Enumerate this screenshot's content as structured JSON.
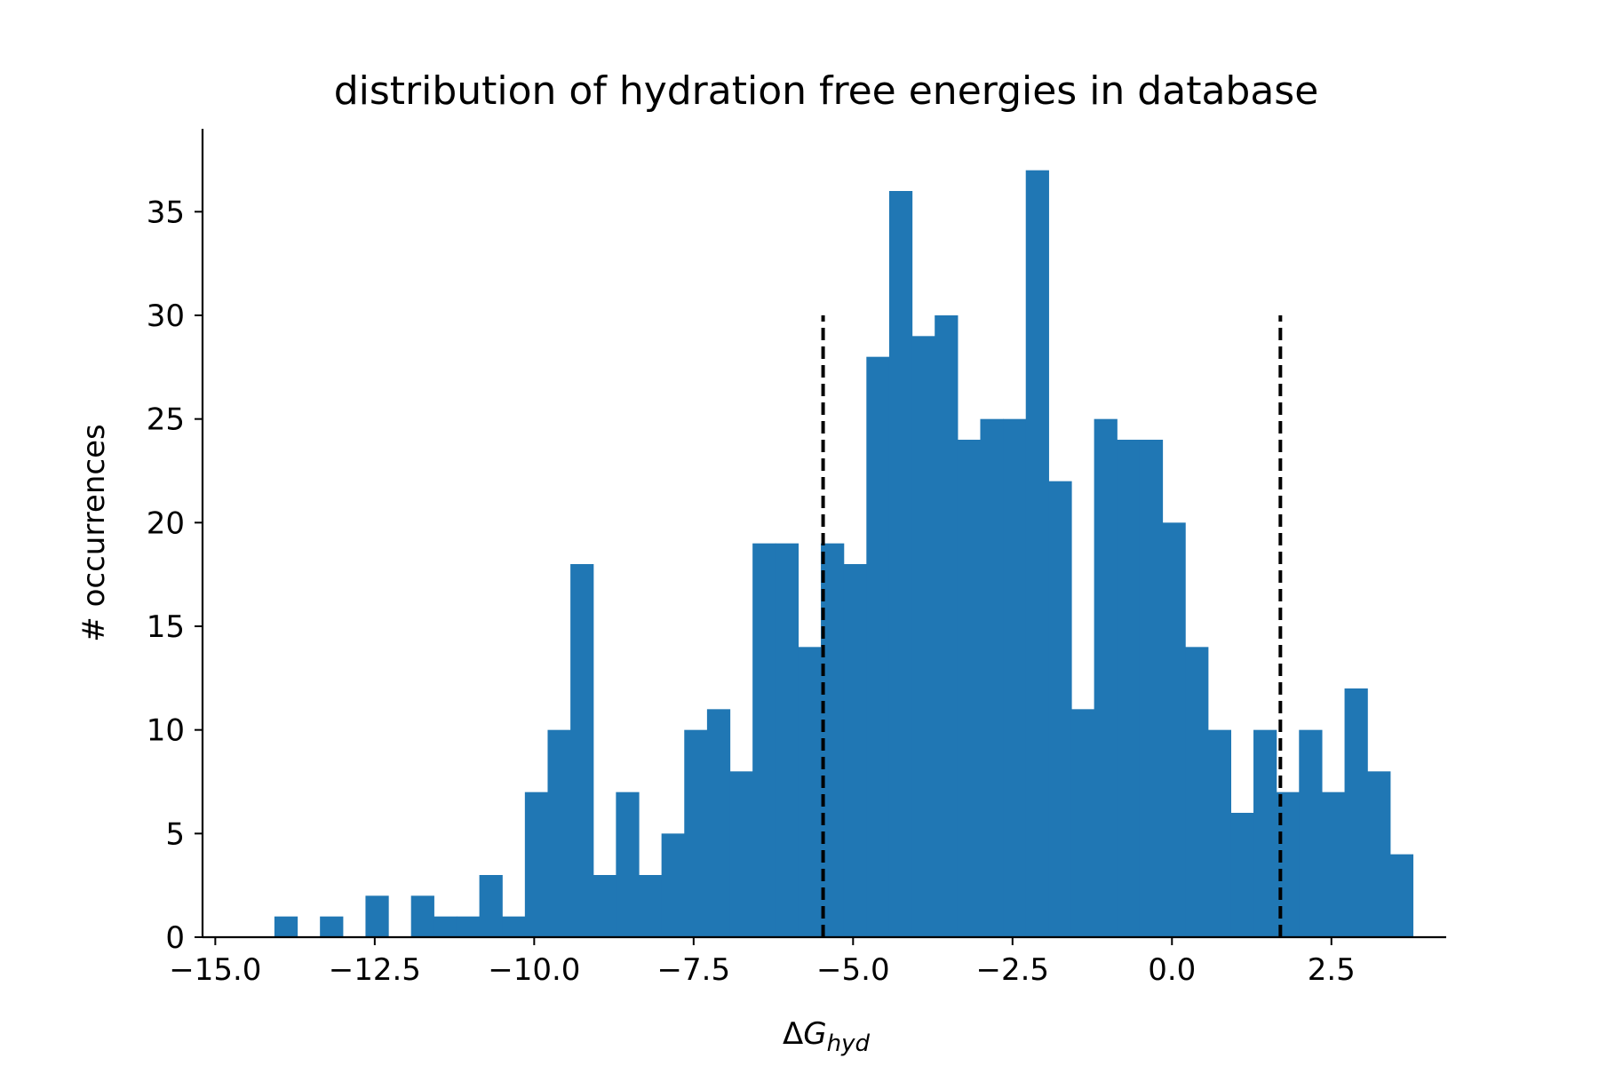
{
  "chart_data": {
    "type": "bar",
    "title": "distribution of hydration free energies in database",
    "xlabel": {
      "prefix": "Δ",
      "symbol": "G",
      "subscript": "hyd"
    },
    "ylabel": "# occurrences",
    "xlim": [
      -15.2,
      4.3
    ],
    "ylim": [
      0,
      39
    ],
    "xticks": [
      -15.0,
      -12.5,
      -10.0,
      -7.5,
      -5.0,
      -2.5,
      0.0,
      2.5
    ],
    "xtick_labels": [
      "−15.0",
      "−12.5",
      "−10.0",
      "−7.5",
      "−5.0",
      "−2.5",
      "0.0",
      "2.5"
    ],
    "yticks": [
      0,
      5,
      10,
      15,
      20,
      25,
      30,
      35
    ],
    "ytick_labels": [
      "0",
      "5",
      "10",
      "15",
      "20",
      "25",
      "30",
      "35"
    ],
    "bins": {
      "start": -14.43,
      "width": 0.357
    },
    "counts": [
      0,
      1,
      0,
      1,
      0,
      2,
      0,
      2,
      1,
      1,
      3,
      1,
      7,
      10,
      18,
      3,
      7,
      3,
      5,
      10,
      11,
      8,
      19,
      19,
      14,
      19,
      18,
      28,
      36,
      29,
      30,
      24,
      25,
      25,
      37,
      22,
      11,
      25,
      24,
      24,
      20,
      14,
      10,
      6,
      10,
      7,
      10,
      7,
      12,
      8,
      4
    ],
    "vlines": [
      {
        "x": -5.47,
        "ymax": 30,
        "style": "dashed",
        "color": "#000000"
      },
      {
        "x": 1.7,
        "ymax": 30,
        "style": "dashed",
        "color": "#000000"
      }
    ],
    "bar_color": "#2077b4",
    "grid": false,
    "legend": "none"
  }
}
